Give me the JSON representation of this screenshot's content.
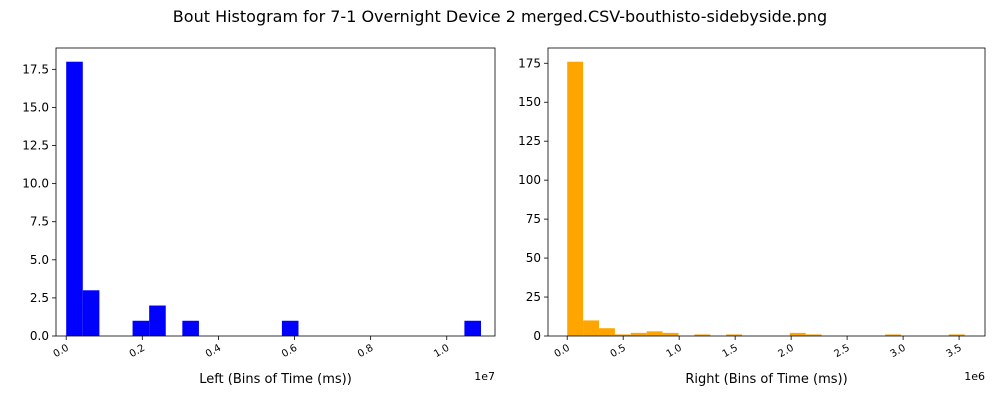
{
  "figure": {
    "title": "Bout Histogram for 7-1 Overnight Device 2 merged.CSV-bouthisto-sidebyside.png"
  },
  "chart_data": [
    {
      "type": "bar",
      "name": "left",
      "xlabel": "Left (Bins of Time (ms))",
      "ylabel": "",
      "x_offset_text": "1e7",
      "x_scale": 10000000,
      "color": "#0000ff",
      "xlim": [
        -0.0268,
        1.1268
      ],
      "ylim": [
        0,
        18.9
      ],
      "xticks": [
        0.0,
        0.2,
        0.4,
        0.6,
        0.8,
        1.0
      ],
      "xtick_labels": [
        "0.0",
        "0.2",
        "0.4",
        "0.6",
        "0.8",
        "1.0"
      ],
      "yticks": [
        0,
        2.5,
        5.0,
        7.5,
        10.0,
        12.5,
        15.0,
        17.5
      ],
      "ytick_labels": [
        "0.0",
        "2.5",
        "5.0",
        "7.5",
        "10.0",
        "12.5",
        "15.0",
        "17.5"
      ],
      "bins": [
        {
          "x0": 0.0,
          "x1": 0.0436,
          "count": 18
        },
        {
          "x0": 0.0436,
          "x1": 0.0872,
          "count": 3
        },
        {
          "x0": 0.0872,
          "x1": 0.1308,
          "count": 0
        },
        {
          "x0": 0.1308,
          "x1": 0.1744,
          "count": 0
        },
        {
          "x0": 0.1744,
          "x1": 0.218,
          "count": 1
        },
        {
          "x0": 0.218,
          "x1": 0.2616,
          "count": 2
        },
        {
          "x0": 0.2616,
          "x1": 0.3052,
          "count": 0
        },
        {
          "x0": 0.3052,
          "x1": 0.3488,
          "count": 1
        },
        {
          "x0": 0.3488,
          "x1": 0.3924,
          "count": 0
        },
        {
          "x0": 0.3924,
          "x1": 0.436,
          "count": 0
        },
        {
          "x0": 0.436,
          "x1": 0.4796,
          "count": 0
        },
        {
          "x0": 0.4796,
          "x1": 0.5232,
          "count": 0
        },
        {
          "x0": 0.5232,
          "x1": 0.5668,
          "count": 0
        },
        {
          "x0": 0.5668,
          "x1": 0.6104,
          "count": 1
        },
        {
          "x0": 0.6104,
          "x1": 0.654,
          "count": 0
        },
        {
          "x0": 0.654,
          "x1": 0.6976,
          "count": 0
        },
        {
          "x0": 0.6976,
          "x1": 0.7412,
          "count": 0
        },
        {
          "x0": 0.7412,
          "x1": 0.7848,
          "count": 0
        },
        {
          "x0": 0.7848,
          "x1": 0.8284,
          "count": 0
        },
        {
          "x0": 0.8284,
          "x1": 0.872,
          "count": 0
        },
        {
          "x0": 0.872,
          "x1": 0.9156,
          "count": 0
        },
        {
          "x0": 0.9156,
          "x1": 0.9592,
          "count": 0
        },
        {
          "x0": 0.9592,
          "x1": 1.0028,
          "count": 0
        },
        {
          "x0": 1.0028,
          "x1": 1.0464,
          "count": 0
        },
        {
          "x0": 1.0464,
          "x1": 1.09,
          "count": 1
        }
      ]
    },
    {
      "type": "bar",
      "name": "right",
      "xlabel": "Right (Bins of Time (ms))",
      "ylabel": "",
      "x_offset_text": "1e6",
      "x_scale": 1000000,
      "color": "#ffa500",
      "xlim": [
        -0.1715,
        3.7315
      ],
      "ylim": [
        0,
        184.8
      ],
      "xticks": [
        0.0,
        0.5,
        1.0,
        1.5,
        2.0,
        2.5,
        3.0,
        3.5
      ],
      "xtick_labels": [
        "0.0",
        "0.5",
        "1.0",
        "1.5",
        "2.0",
        "2.5",
        "3.0",
        "3.5"
      ],
      "yticks": [
        0,
        25,
        50,
        75,
        100,
        125,
        150,
        175
      ],
      "ytick_labels": [
        "0",
        "25",
        "50",
        "75",
        "100",
        "125",
        "150",
        "175"
      ],
      "bins": [
        {
          "x0": 0.0,
          "x1": 0.142,
          "count": 176
        },
        {
          "x0": 0.142,
          "x1": 0.284,
          "count": 10
        },
        {
          "x0": 0.284,
          "x1": 0.426,
          "count": 5
        },
        {
          "x0": 0.426,
          "x1": 0.568,
          "count": 1
        },
        {
          "x0": 0.568,
          "x1": 0.71,
          "count": 2
        },
        {
          "x0": 0.71,
          "x1": 0.852,
          "count": 3
        },
        {
          "x0": 0.852,
          "x1": 0.994,
          "count": 2
        },
        {
          "x0": 0.994,
          "x1": 1.136,
          "count": 0
        },
        {
          "x0": 1.136,
          "x1": 1.278,
          "count": 1
        },
        {
          "x0": 1.278,
          "x1": 1.42,
          "count": 0
        },
        {
          "x0": 1.42,
          "x1": 1.562,
          "count": 1
        },
        {
          "x0": 1.562,
          "x1": 1.704,
          "count": 0
        },
        {
          "x0": 1.704,
          "x1": 1.846,
          "count": 0
        },
        {
          "x0": 1.846,
          "x1": 1.988,
          "count": 0
        },
        {
          "x0": 1.988,
          "x1": 2.13,
          "count": 2
        },
        {
          "x0": 2.13,
          "x1": 2.272,
          "count": 1
        },
        {
          "x0": 2.272,
          "x1": 2.414,
          "count": 0
        },
        {
          "x0": 2.414,
          "x1": 2.556,
          "count": 0
        },
        {
          "x0": 2.556,
          "x1": 2.698,
          "count": 0
        },
        {
          "x0": 2.698,
          "x1": 2.84,
          "count": 0
        },
        {
          "x0": 2.84,
          "x1": 2.982,
          "count": 1
        },
        {
          "x0": 2.982,
          "x1": 3.124,
          "count": 0
        },
        {
          "x0": 3.124,
          "x1": 3.266,
          "count": 0
        },
        {
          "x0": 3.266,
          "x1": 3.408,
          "count": 0
        },
        {
          "x0": 3.408,
          "x1": 3.55,
          "count": 1
        }
      ]
    }
  ]
}
